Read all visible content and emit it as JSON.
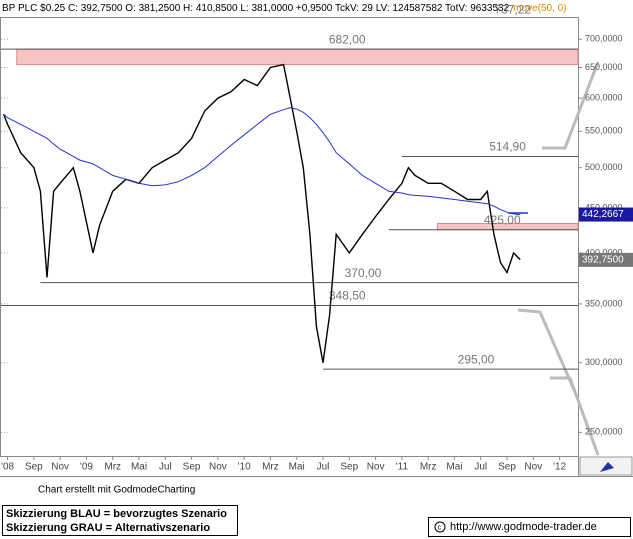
{
  "chart_data": {
    "type": "line",
    "header": {
      "main": "BP PLC $0.25 C: 392,7500 O: 381,2500 H: 410,8500 L: 381,0000 +0,9500 TckV: 29 LV: 124587582 TotV: 9633532",
      "indicator": "move(50, 0)"
    },
    "footer": "Chart erstellt mit GodmodeCharting",
    "legend_lines": [
      "Skizzierung BLAU = bevorzugtes Szenario",
      "Skizzierung GRAU = Alternativszenario"
    ],
    "credit": "http://www.godmode-trader.de",
    "log_scale": true,
    "grid": false,
    "xlim": [
      -0.5,
      43.4
    ],
    "ylim": [
      235,
      740
    ],
    "xticks": [
      {
        "value": 0,
        "label": "'08"
      },
      {
        "value": 2,
        "label": "Sep"
      },
      {
        "value": 4,
        "label": "Nov"
      },
      {
        "value": 6,
        "label": "'09"
      },
      {
        "value": 8,
        "label": "Mrz"
      },
      {
        "value": 10,
        "label": "Mai"
      },
      {
        "value": 12,
        "label": "Jul"
      },
      {
        "value": 14,
        "label": "Sep"
      },
      {
        "value": 16,
        "label": "Nov"
      },
      {
        "value": 18,
        "label": "'10"
      },
      {
        "value": 20,
        "label": "Mrz"
      },
      {
        "value": 22,
        "label": "Mai"
      },
      {
        "value": 24,
        "label": "Jul"
      },
      {
        "value": 26,
        "label": "Sep"
      },
      {
        "value": 28,
        "label": "Nov"
      },
      {
        "value": 30,
        "label": "'11"
      },
      {
        "value": 32,
        "label": "Mrz"
      },
      {
        "value": 34,
        "label": "Mai"
      },
      {
        "value": 36,
        "label": "Jul"
      },
      {
        "value": 38,
        "label": "Sep"
      },
      {
        "value": 40,
        "label": "Nov"
      },
      {
        "value": 42,
        "label": "'12"
      }
    ],
    "yticks": [
      {
        "value": 250,
        "label": "250,0000"
      },
      {
        "value": 300,
        "label": "300,0000"
      },
      {
        "value": 350,
        "label": "350,0000"
      },
      {
        "value": 400,
        "label": "400,0000"
      },
      {
        "value": 450,
        "label": "450,0000"
      },
      {
        "value": 500,
        "label": "500,0000"
      },
      {
        "value": 550,
        "label": "550,0000"
      },
      {
        "value": 600,
        "label": "600,0000"
      },
      {
        "value": 650,
        "label": "650,0000"
      },
      {
        "value": 700,
        "label": "700,0000"
      }
    ],
    "x": [
      -0.3,
      0,
      1,
      2,
      2.5,
      3,
      3.5,
      4,
      5,
      5.5,
      6.5,
      7,
      8,
      9,
      10,
      11,
      12,
      13,
      14,
      15,
      16,
      17,
      18,
      19,
      20,
      21,
      21.5,
      22,
      22.5,
      23,
      23.5,
      24,
      24.5,
      25,
      26,
      27,
      28,
      29,
      30,
      30.5,
      31,
      32,
      33,
      34,
      35,
      36,
      36.5,
      37,
      37.5,
      38,
      38.5,
      39
    ],
    "series": [
      {
        "color": "#000000",
        "values": [
          575,
          560,
          520,
          500,
          470,
          375,
          470,
          480,
          500,
          470,
          400,
          430,
          470,
          485,
          480,
          500,
          510,
          520,
          540,
          580,
          600,
          610,
          630,
          620,
          650,
          655,
          600,
          550,
          500,
          420,
          330,
          300,
          340,
          420,
          400,
          420,
          440,
          460,
          480,
          500,
          490,
          480,
          480,
          470,
          460,
          460,
          470,
          420,
          390,
          380,
          400,
          393
        ]
      },
      {
        "color": "#2233cc",
        "values": [
          575,
          570,
          560,
          550,
          545,
          540,
          532,
          525,
          515,
          510,
          505,
          500,
          490,
          485,
          480,
          477,
          478,
          482,
          490,
          500,
          515,
          530,
          545,
          560,
          575,
          582,
          585,
          583,
          578,
          570,
          560,
          548,
          535,
          520,
          505,
          490,
          480,
          470,
          468,
          466,
          465,
          464,
          462,
          460,
          458,
          456,
          455,
          452,
          448,
          445,
          443,
          442
        ]
      }
    ],
    "levels": [
      {
        "value": 737.22,
        "label": "737,22",
        "start": 31
      },
      {
        "value": 682,
        "label": "682,00",
        "start": -0.5
      },
      {
        "value": 514.9,
        "label": "514,90",
        "start": 30
      },
      {
        "value": 425,
        "label": "425,00",
        "start": 29
      },
      {
        "value": 370,
        "label": "370,00",
        "start": 2.5
      },
      {
        "value": 348.5,
        "label": "348,50",
        "start": -0.5
      },
      {
        "value": 295,
        "label": "295,00",
        "start": 24
      }
    ],
    "zones": [
      {
        "low": 655,
        "high": 682,
        "start": 0.7,
        "color": "#f7c4c4"
      },
      {
        "low": 425,
        "high": 432,
        "start": 32.7,
        "color": "#f7c4c4"
      }
    ],
    "price_tags": [
      {
        "value": 442.2667,
        "label": "442,2667",
        "color": "#1a1aa0"
      },
      {
        "value": 392.75,
        "label": "392,7500",
        "color": "#777777"
      }
    ]
  }
}
